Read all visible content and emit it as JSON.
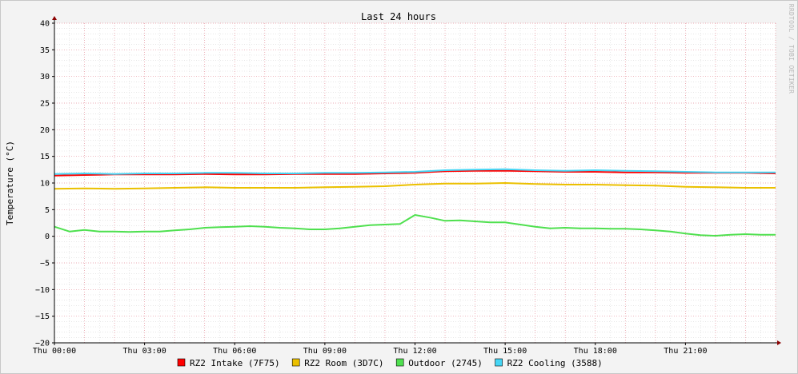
{
  "chart_data": {
    "type": "line",
    "title": "Last 24 hours",
    "ylabel": "Temperature (°C)",
    "ylim": [
      -20,
      40
    ],
    "yticks": [
      40,
      35,
      30,
      25,
      20,
      15,
      10,
      5,
      0,
      -5,
      -10,
      -15,
      -20
    ],
    "ytick_labels": [
      "40",
      "35",
      "30",
      "25",
      "20",
      "15",
      "10",
      "5",
      "0",
      "−5",
      "−10",
      "−15",
      "−20"
    ],
    "xlim": [
      0,
      24
    ],
    "xticks": [
      0,
      3,
      6,
      9,
      12,
      15,
      18,
      21
    ],
    "xtick_labels": [
      "Thu 00:00",
      "Thu 03:00",
      "Thu 06:00",
      "Thu 09:00",
      "Thu 12:00",
      "Thu 15:00",
      "Thu 18:00",
      "Thu 21:00"
    ],
    "grid": true,
    "legend_position": "bottom",
    "watermark": "RRDTOOL / TOBI OETIKER",
    "series": [
      {
        "name": "RZ2 Intake (7F75)",
        "color": "#ff0000",
        "x": [
          0,
          1,
          2,
          3,
          4,
          5,
          6,
          7,
          8,
          9,
          10,
          11,
          12,
          13,
          14,
          15,
          16,
          17,
          18,
          19,
          20,
          21,
          22,
          23,
          24
        ],
        "values": [
          11.4,
          11.5,
          11.6,
          11.6,
          11.6,
          11.7,
          11.6,
          11.6,
          11.7,
          11.7,
          11.7,
          11.8,
          11.9,
          12.2,
          12.3,
          12.3,
          12.2,
          12.1,
          12.1,
          12.0,
          12.0,
          11.9,
          11.9,
          11.9,
          11.8
        ]
      },
      {
        "name": "RZ2 Room (3D7C)",
        "color": "#ebc000",
        "x": [
          0,
          1,
          2,
          3,
          4,
          5,
          6,
          7,
          8,
          9,
          10,
          11,
          12,
          13,
          14,
          15,
          16,
          17,
          18,
          19,
          20,
          21,
          22,
          23,
          24
        ],
        "values": [
          8.9,
          9.0,
          8.9,
          9.0,
          9.1,
          9.2,
          9.1,
          9.1,
          9.1,
          9.2,
          9.3,
          9.4,
          9.7,
          9.9,
          9.9,
          10.0,
          9.8,
          9.7,
          9.7,
          9.6,
          9.5,
          9.3,
          9.2,
          9.1,
          9.1
        ]
      },
      {
        "name": "Outdoor (2745)",
        "color": "#4fe04f",
        "x": [
          0,
          0.5,
          1,
          1.5,
          2,
          2.5,
          3,
          3.5,
          4,
          4.5,
          5,
          5.5,
          6,
          6.5,
          7,
          7.5,
          8,
          8.5,
          9,
          9.5,
          10,
          10.5,
          11,
          11.5,
          12,
          12.5,
          13,
          13.5,
          14,
          14.5,
          15,
          15.5,
          16,
          16.5,
          17,
          17.5,
          18,
          18.5,
          19,
          19.5,
          20,
          20.5,
          21,
          21.5,
          22,
          22.5,
          23,
          23.5,
          24
        ],
        "values": [
          1.8,
          0.9,
          1.2,
          0.9,
          0.9,
          0.8,
          0.9,
          0.9,
          1.1,
          1.3,
          1.6,
          1.7,
          1.8,
          1.9,
          1.8,
          1.6,
          1.5,
          1.3,
          1.3,
          1.5,
          1.8,
          2.1,
          2.2,
          2.3,
          4.0,
          3.5,
          2.9,
          3.0,
          2.8,
          2.6,
          2.6,
          2.2,
          1.8,
          1.5,
          1.6,
          1.5,
          1.5,
          1.4,
          1.4,
          1.3,
          1.1,
          0.9,
          0.5,
          0.2,
          0.1,
          0.3,
          0.4,
          0.3,
          0.3
        ]
      },
      {
        "name": "RZ2 Cooling (3588)",
        "color": "#45d6f5",
        "x": [
          0,
          1,
          2,
          3,
          4,
          5,
          6,
          7,
          8,
          9,
          10,
          11,
          12,
          13,
          14,
          15,
          16,
          17,
          18,
          19,
          20,
          21,
          22,
          23,
          24
        ],
        "values": [
          11.7,
          11.8,
          11.7,
          11.8,
          11.8,
          11.9,
          11.9,
          11.8,
          11.8,
          11.9,
          11.9,
          12.0,
          12.1,
          12.4,
          12.5,
          12.6,
          12.4,
          12.3,
          12.4,
          12.3,
          12.2,
          12.1,
          12.0,
          12.0,
          12.0
        ]
      }
    ]
  },
  "colors": {
    "background": "#f3f3f3",
    "plot_background": "#ffffff",
    "major_grid": "#e58f9a",
    "minor_grid": "#d8d8d8",
    "axis": "#000000",
    "arrow": "#8b0000"
  }
}
